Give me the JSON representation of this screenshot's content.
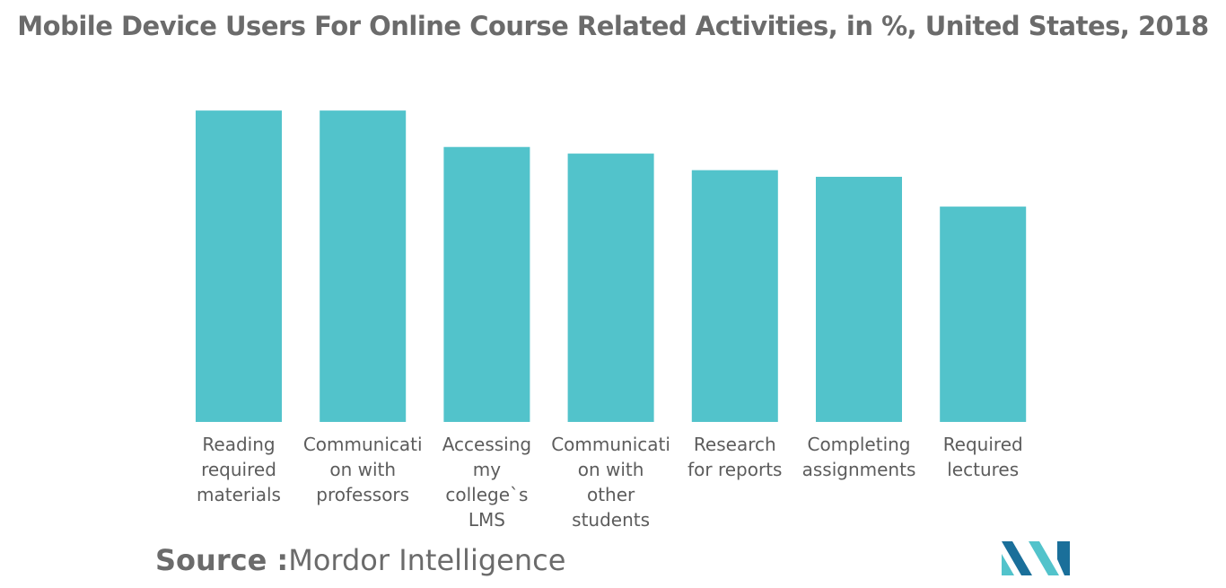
{
  "chart_data": {
    "type": "bar",
    "title": "Mobile Device Users For Online Course Related Activities, in %, United States, 2018",
    "categories": [
      "Reading required materials",
      "Communication with professors",
      "Accessing my college`s LMS",
      "Communication with other students",
      "Research for reports",
      "Completing assignments",
      "Required lectures"
    ],
    "category_label_lines": [
      [
        "Reading",
        "required",
        "materials"
      ],
      [
        "Communicati",
        "on with",
        "professors"
      ],
      [
        "Accessing",
        "my",
        "college`s",
        "LMS"
      ],
      [
        "Communicati",
        "on with",
        "other",
        "students"
      ],
      [
        "Research",
        "for reports"
      ],
      [
        "Completing",
        "assignments"
      ],
      [
        "Required",
        "lectures"
      ]
    ],
    "values": [
      47,
      47,
      41.5,
      40.5,
      38,
      37,
      32.5
    ],
    "ylim": [
      0,
      50
    ],
    "grid": false,
    "legend": "none",
    "bar_color": "#52c3cb"
  },
  "footer": {
    "source_label": "Source :",
    "source_value": "Mordor Intelligence"
  },
  "logo": {
    "icon": "mordor-intelligence-logo-icon",
    "colors": [
      "#1a6f9a",
      "#52c3cb"
    ]
  }
}
